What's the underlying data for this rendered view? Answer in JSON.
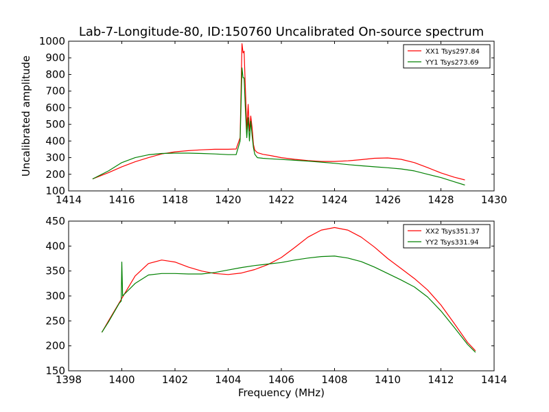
{
  "figure": {
    "title": "Lab-7-Longitude-80, ID:150760 Uncalibrated On-source spectrum"
  },
  "chart_data": [
    {
      "type": "line",
      "ylabel": "Uncalibrated amplitude",
      "xlabel": "",
      "xlim": [
        1414,
        1430
      ],
      "ylim": [
        100,
        1000
      ],
      "x_ticks": [
        "1414",
        "1416",
        "1418",
        "1420",
        "1422",
        "1424",
        "1426",
        "1428",
        "1430"
      ],
      "y_ticks": [
        "100",
        "200",
        "300",
        "400",
        "500",
        "600",
        "700",
        "800",
        "900",
        "1000"
      ],
      "grid": false,
      "legend_position": "top-right",
      "series": [
        {
          "name": "XX1 Tsys297.84",
          "color": "#ff0000",
          "x": [
            1414.9,
            1415.5,
            1416,
            1416.5,
            1417,
            1417.5,
            1418,
            1418.5,
            1419,
            1419.5,
            1420,
            1420.3,
            1420.45,
            1420.52,
            1420.56,
            1420.6,
            1420.65,
            1420.7,
            1420.75,
            1420.8,
            1420.85,
            1420.9,
            1420.95,
            1421.0,
            1421.1,
            1421.3,
            1421.6,
            1422,
            1422.5,
            1423,
            1423.5,
            1424,
            1424.5,
            1425,
            1425.5,
            1426,
            1426.5,
            1427,
            1427.5,
            1428,
            1428.5,
            1428.9
          ],
          "y": [
            172,
            210,
            245,
            275,
            300,
            322,
            335,
            342,
            347,
            350,
            350,
            352,
            420,
            985,
            930,
            940,
            700,
            470,
            620,
            460,
            550,
            480,
            380,
            345,
            330,
            320,
            312,
            300,
            290,
            282,
            277,
            277,
            281,
            288,
            296,
            298,
            290,
            270,
            240,
            208,
            182,
            166
          ]
        },
        {
          "name": "YY1 Tsys273.69",
          "color": "#008000",
          "x": [
            1414.9,
            1415.5,
            1416,
            1416.5,
            1417,
            1417.5,
            1418,
            1418.5,
            1419,
            1419.5,
            1420,
            1420.3,
            1420.45,
            1420.52,
            1420.56,
            1420.6,
            1420.65,
            1420.7,
            1420.75,
            1420.8,
            1420.85,
            1420.9,
            1420.95,
            1421.0,
            1421.1,
            1421.3,
            1421.6,
            1422,
            1422.5,
            1423,
            1423.5,
            1424,
            1424.5,
            1425,
            1425.5,
            1426,
            1426.5,
            1427,
            1427.5,
            1428,
            1428.5,
            1428.9
          ],
          "y": [
            172,
            220,
            270,
            300,
            317,
            325,
            327,
            327,
            325,
            322,
            318,
            318,
            400,
            840,
            780,
            780,
            580,
            420,
            540,
            400,
            520,
            430,
            360,
            320,
            300,
            296,
            293,
            289,
            284,
            279,
            273,
            266,
            258,
            251,
            245,
            239,
            232,
            220,
            200,
            180,
            155,
            135
          ]
        }
      ]
    },
    {
      "type": "line",
      "ylabel": "",
      "xlabel": "Frequency (MHz)",
      "xlim": [
        1398,
        1414
      ],
      "ylim": [
        150,
        450
      ],
      "x_ticks": [
        "1398",
        "1400",
        "1402",
        "1404",
        "1406",
        "1408",
        "1410",
        "1412",
        "1414"
      ],
      "y_ticks": [
        "150",
        "200",
        "250",
        "300",
        "350",
        "400",
        "450"
      ],
      "grid": false,
      "legend_position": "top-right",
      "series": [
        {
          "name": "XX2 Tsys351.37",
          "color": "#ff0000",
          "x": [
            1399.25,
            1399.5,
            1400,
            1400.5,
            1401,
            1401.5,
            1402,
            1402.5,
            1403,
            1403.5,
            1404,
            1404.5,
            1405,
            1405.5,
            1406,
            1406.5,
            1407,
            1407.5,
            1408,
            1408.5,
            1409,
            1409.5,
            1410,
            1410.5,
            1411,
            1411.5,
            1412,
            1412.5,
            1413,
            1413.3
          ],
          "y": [
            227,
            250,
            295,
            340,
            365,
            372,
            368,
            358,
            350,
            345,
            343,
            346,
            353,
            363,
            377,
            397,
            418,
            432,
            437,
            432,
            418,
            398,
            375,
            355,
            335,
            312,
            282,
            245,
            207,
            190
          ]
        },
        {
          "name": "YY2 Tsys331.94",
          "color": "#008000",
          "x": [
            1399.25,
            1399.5,
            1399.9,
            1399.98,
            1400.0,
            1400.03,
            1400.5,
            1401,
            1401.5,
            1402,
            1402.5,
            1403,
            1403.5,
            1404,
            1404.5,
            1405,
            1405.5,
            1406,
            1406.5,
            1407,
            1407.5,
            1408,
            1408.5,
            1409,
            1409.5,
            1410,
            1410.5,
            1411,
            1411.5,
            1412,
            1412.5,
            1413,
            1413.3
          ],
          "y": [
            227,
            248,
            285,
            290,
            368,
            300,
            325,
            342,
            345,
            345,
            344,
            344,
            347,
            352,
            357,
            361,
            364,
            367,
            372,
            376,
            379,
            380,
            376,
            369,
            358,
            345,
            332,
            318,
            298,
            270,
            237,
            203,
            187
          ]
        }
      ]
    }
  ]
}
